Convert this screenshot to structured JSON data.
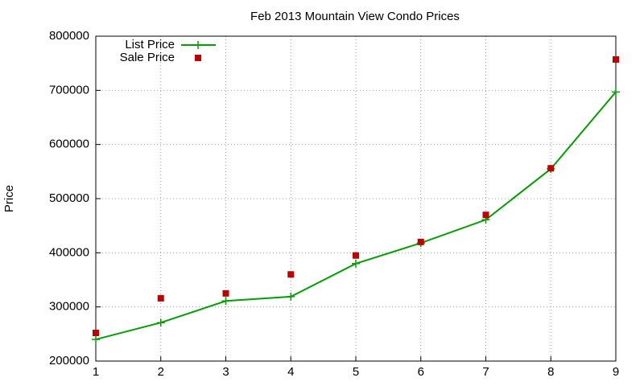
{
  "chart_data": {
    "type": "line",
    "title": "Feb 2013 Mountain View Condo Prices",
    "y_label": "Price",
    "x": [
      1,
      2,
      3,
      4,
      5,
      6,
      7,
      8,
      9
    ],
    "series": [
      {
        "name": "List Price",
        "color": "#00a000",
        "mode": "lines+markers",
        "values": [
          240000,
          271000,
          311000,
          319000,
          380000,
          418000,
          461000,
          555000,
          697000
        ]
      },
      {
        "name": "Sale Price",
        "color": "#c00000",
        "mode": "markers",
        "values": [
          252000,
          316000,
          325000,
          360000,
          395000,
          420000,
          470000,
          556000,
          757000
        ]
      }
    ],
    "xlim": [
      1,
      9
    ],
    "xticks": [
      1,
      2,
      3,
      4,
      5,
      6,
      7,
      8,
      9
    ],
    "ylim": [
      200000,
      800000
    ],
    "yticks": [
      200000,
      300000,
      400000,
      500000,
      600000,
      700000,
      800000
    ],
    "grid": true,
    "legend": "top-left"
  }
}
